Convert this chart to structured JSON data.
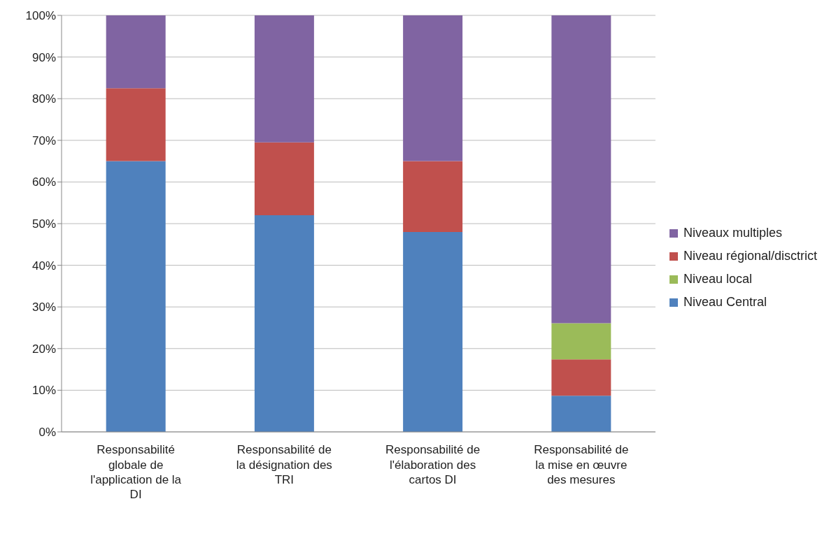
{
  "chart_data": {
    "type": "bar",
    "stacked": true,
    "categories": [
      "Responsabilité globale de l'application de la DI",
      "Responsabilité de la désignation des TRI",
      "Responsabilité de l'élaboration des cartos DI",
      "Responsabilité de la mise en œuvre des mesures"
    ],
    "series": [
      {
        "name": "Niveau Central",
        "color": "#4f81bd",
        "values": [
          65,
          52,
          48,
          8.7
        ]
      },
      {
        "name": "Niveau régional/disctrict",
        "color": "#c0504d",
        "values": [
          17.5,
          17.5,
          17,
          8.7
        ]
      },
      {
        "name": "Niveau local",
        "color": "#9bbb59",
        "values": [
          0,
          0,
          0,
          8.7
        ]
      },
      {
        "name": "Niveaux multiples",
        "color": "#8064a2",
        "values": [
          17.5,
          30.5,
          35,
          73.9
        ]
      }
    ],
    "ylim": [
      0,
      100
    ],
    "yticks": [
      {
        "value": 0,
        "label": "0%"
      },
      {
        "value": 10,
        "label": "10%"
      },
      {
        "value": 20,
        "label": "20%"
      },
      {
        "value": 30,
        "label": "30%"
      },
      {
        "value": 40,
        "label": "40%"
      },
      {
        "value": 50,
        "label": "50%"
      },
      {
        "value": 60,
        "label": "60%"
      },
      {
        "value": 70,
        "label": "70%"
      },
      {
        "value": 80,
        "label": "80%"
      },
      {
        "value": 90,
        "label": "90%"
      },
      {
        "value": 100,
        "label": "100%"
      }
    ],
    "grid": "y",
    "legend": "right"
  }
}
